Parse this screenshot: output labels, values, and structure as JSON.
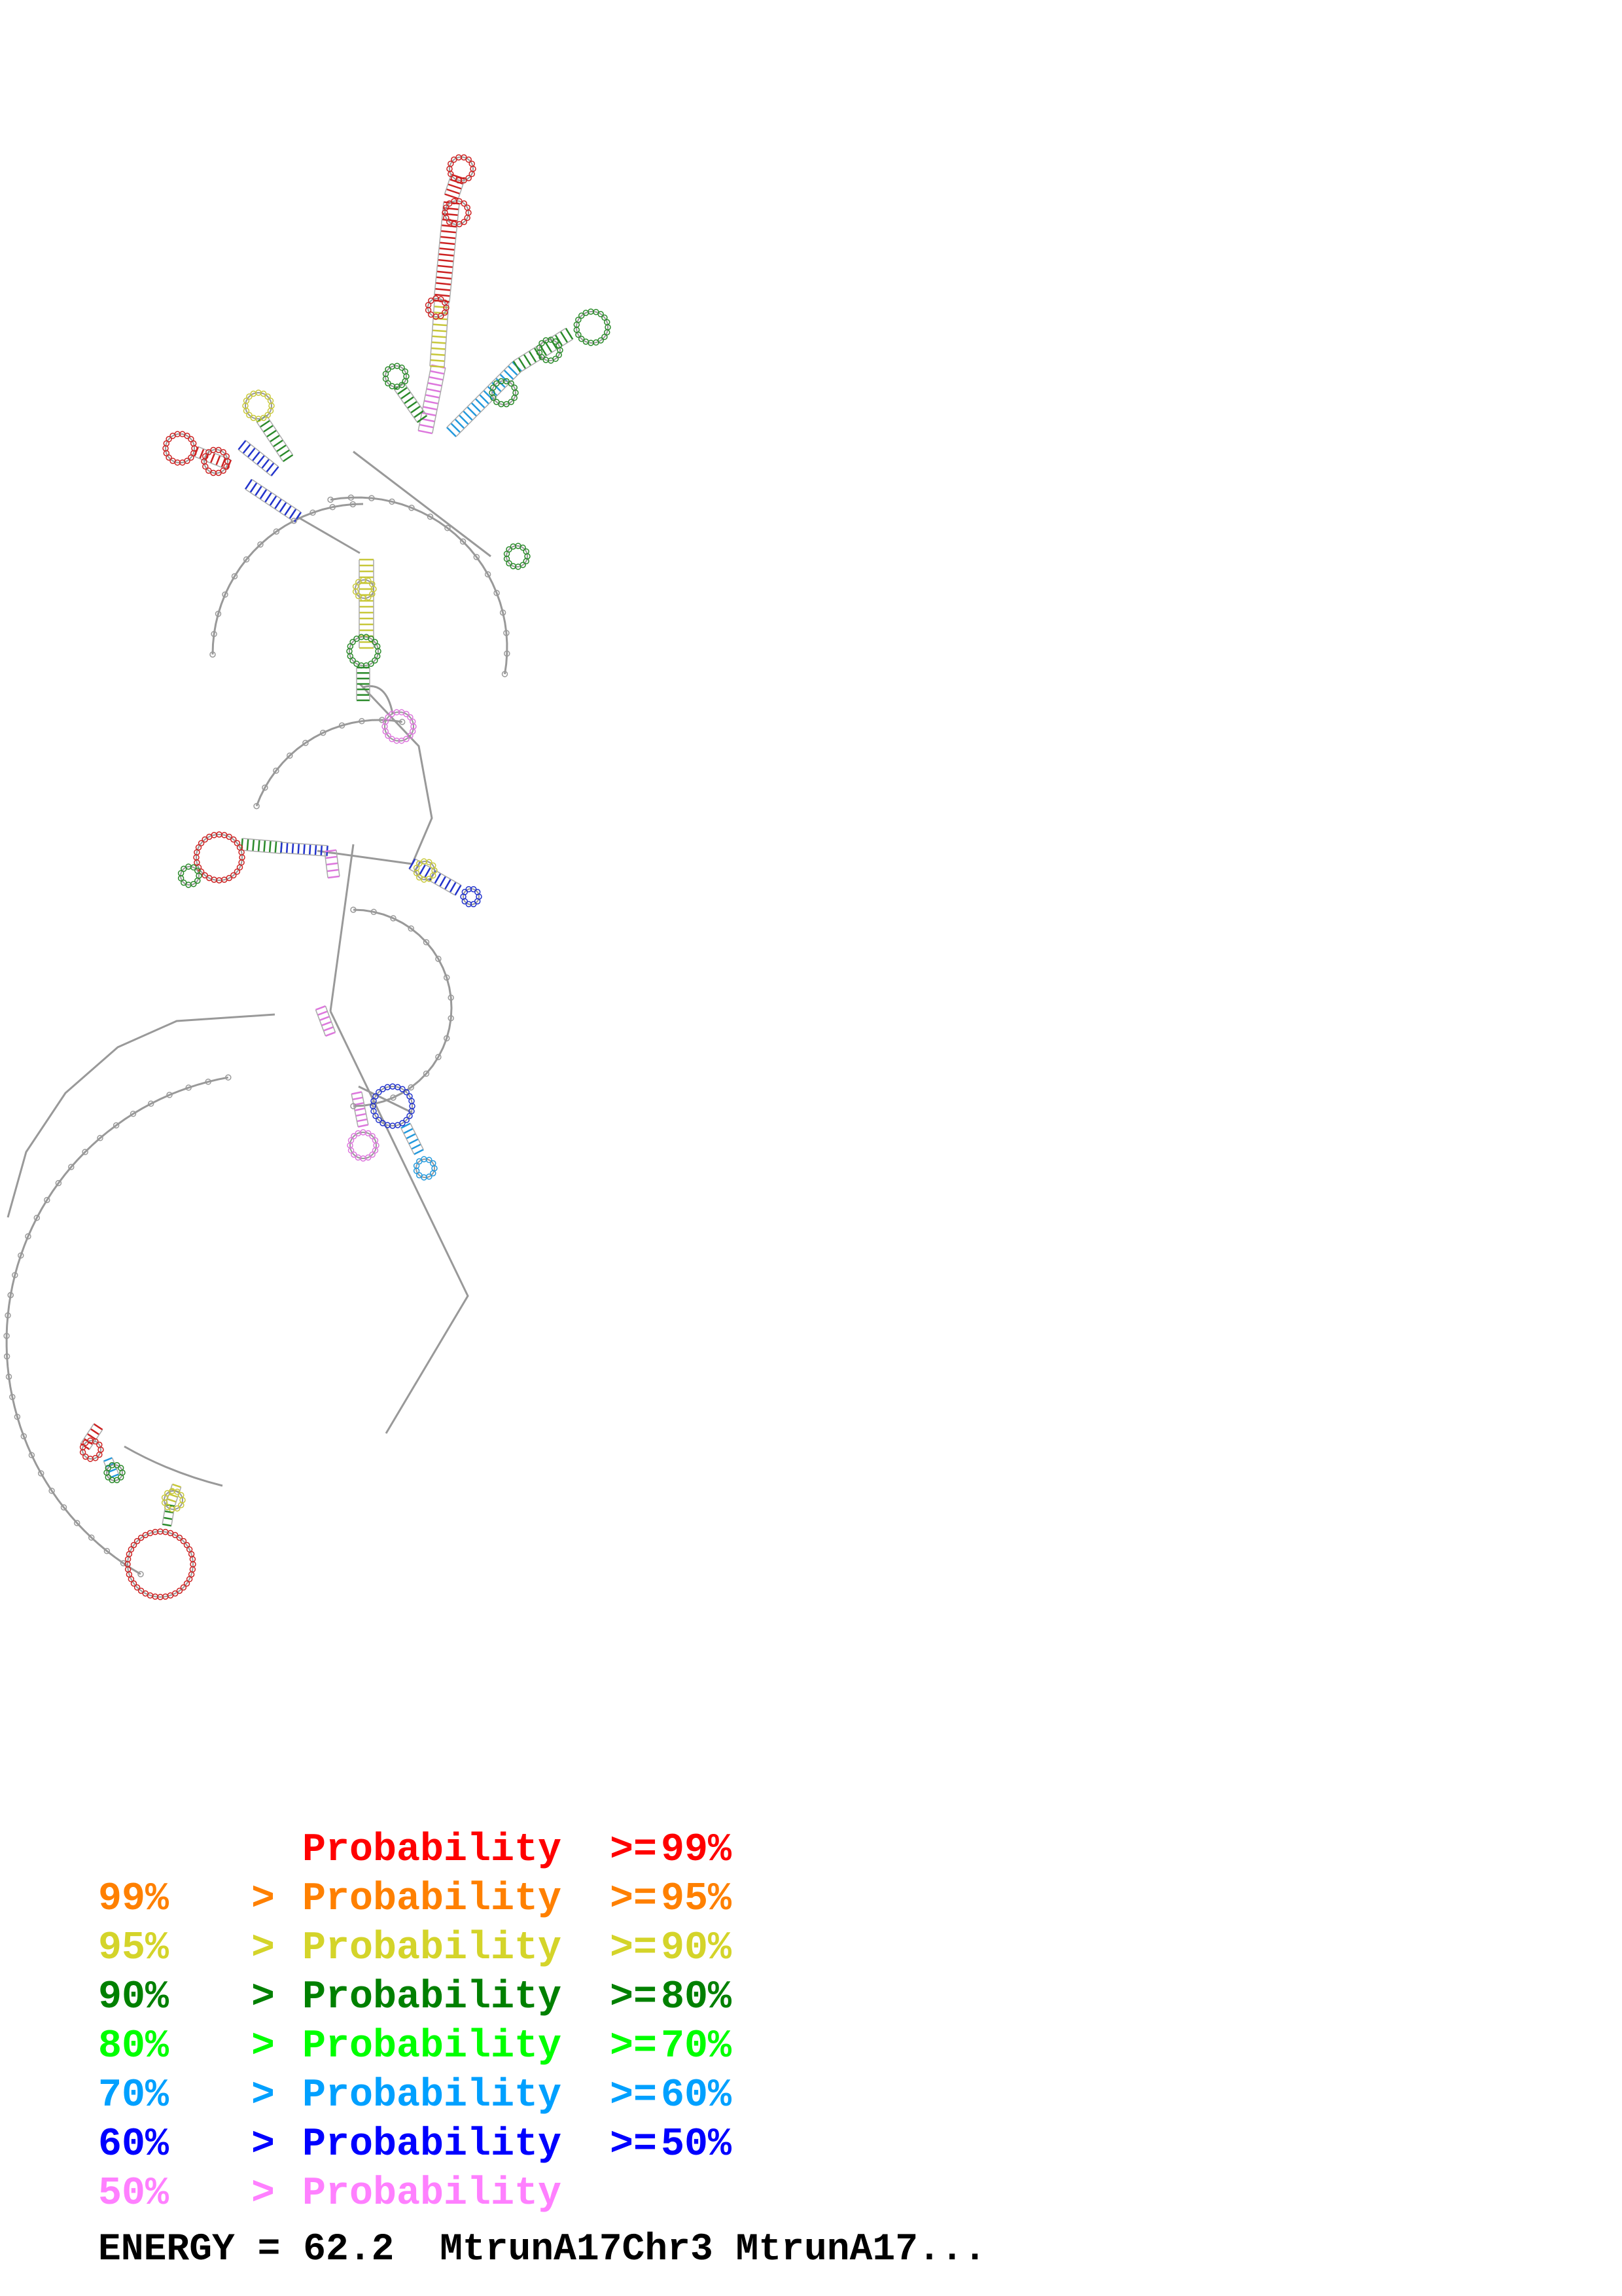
{
  "legend": [
    {
      "low": "",
      "sep": "",
      "label": "Probability",
      "op": ">=",
      "high": "99%",
      "color": "#ff0000"
    },
    {
      "low": "99%",
      "sep": ">",
      "label": "Probability",
      "op": ">=",
      "high": "95%",
      "color": "#ff8000"
    },
    {
      "low": "95%",
      "sep": ">",
      "label": "Probability",
      "op": ">=",
      "high": "90%",
      "color": "#d4d42a"
    },
    {
      "low": "90%",
      "sep": ">",
      "label": "Probability",
      "op": ">=",
      "high": "80%",
      "color": "#008000"
    },
    {
      "low": "80%",
      "sep": ">",
      "label": "Probability",
      "op": ">=",
      "high": "70%",
      "color": "#00ff00"
    },
    {
      "low": "70%",
      "sep": ">",
      "label": "Probability",
      "op": ">=",
      "high": "60%",
      "color": "#00a0ff"
    },
    {
      "low": "60%",
      "sep": ">",
      "label": "Probability",
      "op": ">=",
      "high": "50%",
      "color": "#0000ff"
    },
    {
      "low": "50%",
      "sep": ">",
      "label": "Probability",
      "op": "",
      "high": "",
      "color": "#ff80ff"
    }
  ],
  "footer": {
    "text": "ENERGY = 62.2  MtrunA17Chr3 MtrunA17..."
  },
  "structure": {
    "backbone_color": "#888888",
    "stem_colors": [
      "#cc2222",
      "#ee8822",
      "#c8c83a",
      "#2a8a2a",
      "#44cc44",
      "#2299dd",
      "#2233cc",
      "#dd77dd"
    ]
  }
}
